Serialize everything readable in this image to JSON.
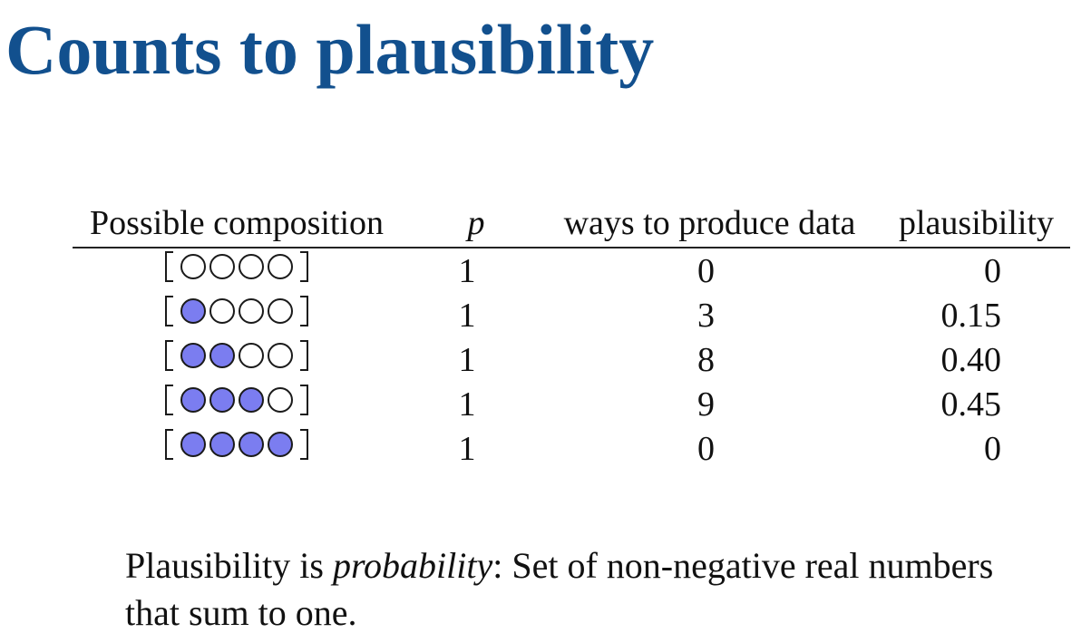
{
  "title": "Counts to plausibility",
  "table": {
    "headers": {
      "composition": "Possible composition",
      "p": "p",
      "ways": "ways to produce data",
      "plausibility": "plausibility"
    },
    "rows": [
      {
        "composition": "[○○○○]",
        "blue_count": 0,
        "p": "1",
        "ways": "0",
        "plausibility": "0"
      },
      {
        "composition": "[●○○○]",
        "blue_count": 1,
        "p": "1",
        "ways": "3",
        "plausibility": "0.15"
      },
      {
        "composition": "[●●○○]",
        "blue_count": 2,
        "p": "1",
        "ways": "8",
        "plausibility": "0.40"
      },
      {
        "composition": "[●●●○]",
        "blue_count": 3,
        "p": "1",
        "ways": "9",
        "plausibility": "0.45"
      },
      {
        "composition": "[●●●●]",
        "blue_count": 4,
        "p": "1",
        "ways": "0",
        "plausibility": "0"
      }
    ]
  },
  "note": {
    "part1": "Plausibility is ",
    "emphasis": "probability",
    "part2": ": Set of non-negative real numbers that sum to one."
  },
  "colors": {
    "title": "#12508e",
    "blue_marble": "#7b7df0",
    "white_marble": "#ffffff"
  }
}
